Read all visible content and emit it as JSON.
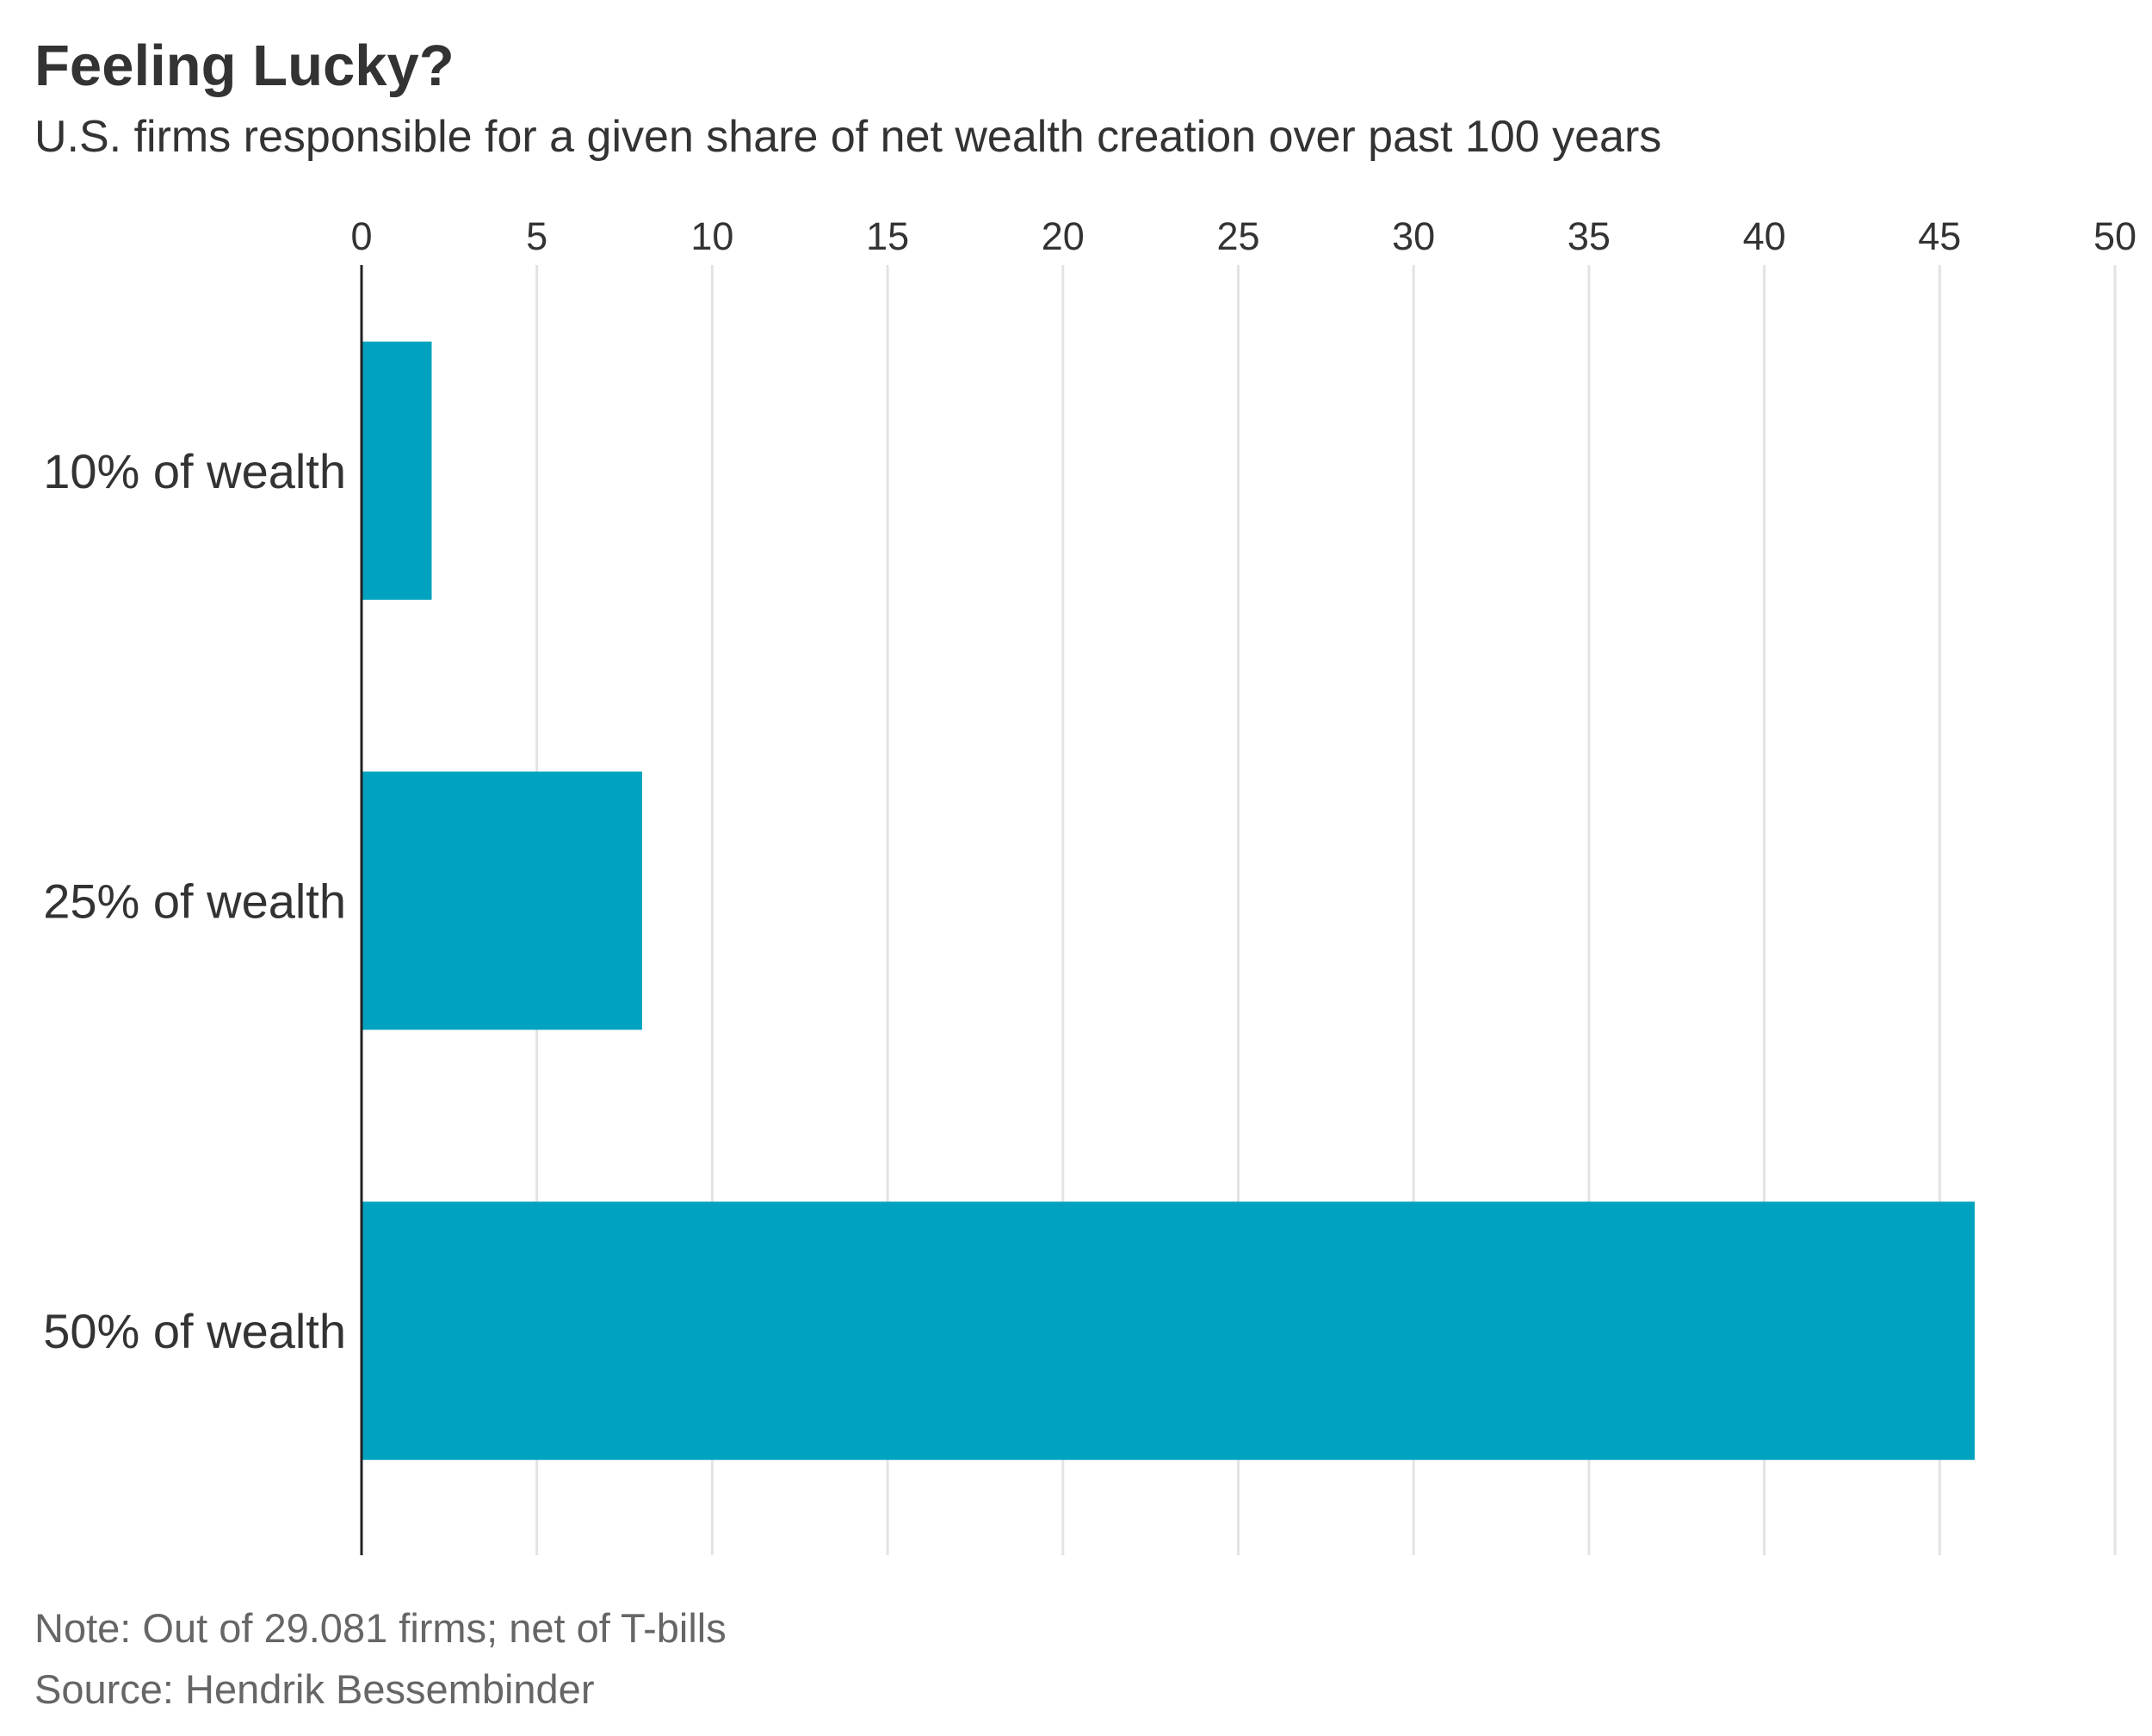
{
  "chart_data": {
    "type": "bar",
    "orientation": "horizontal",
    "title": "Feeling Lucky?",
    "subtitle": "U.S. firms responsible for a given share of net wealth creation over past 100 years",
    "categories": [
      "10% of wealth",
      "25% of wealth",
      "50% of wealth"
    ],
    "values": [
      2,
      8,
      46
    ],
    "xlim": [
      0,
      50
    ],
    "xticks": [
      0,
      5,
      10,
      15,
      20,
      25,
      30,
      35,
      40,
      45,
      50
    ],
    "xlabel": "",
    "ylabel": "",
    "grid": true,
    "bar_color": "#00a3bf",
    "grid_color": "#e3e3e3",
    "axis_color": "#222222"
  },
  "footer": {
    "note": "Note: Out of 29.081 firms; net of T-bills",
    "source": "Source: Hendrik Bessembinder"
  }
}
